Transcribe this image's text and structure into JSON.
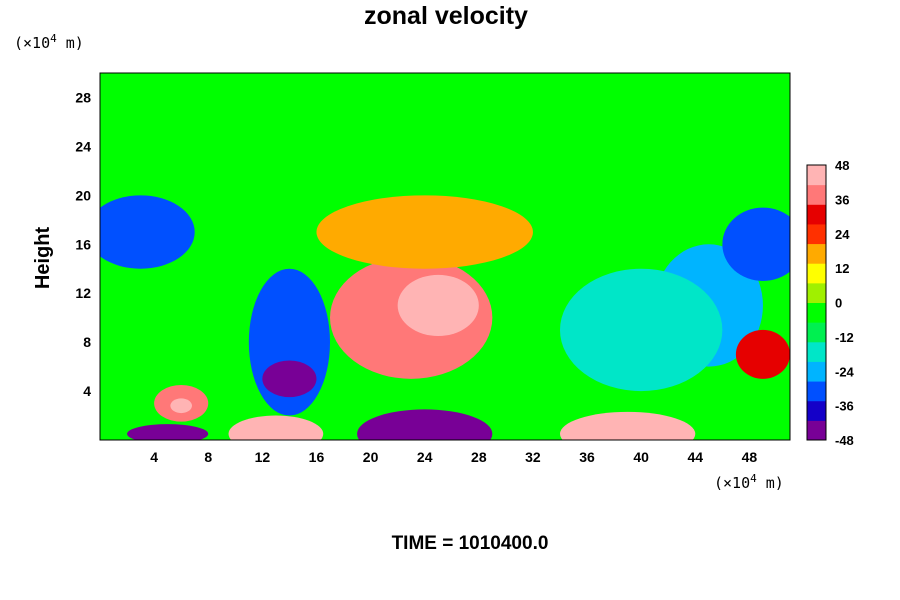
{
  "chart_data": {
    "type": "heatmap",
    "title": "zonal velocity",
    "ylabel": "Height",
    "x_unit_prefix": "(×10",
    "x_unit_exp": "4",
    "x_unit_suffix": " m)",
    "y_unit_prefix": "(×10",
    "y_unit_exp": "4",
    "y_unit_suffix": " m)",
    "xlim": [
      0,
      51
    ],
    "ylim": [
      0,
      30
    ],
    "x_ticks": [
      "4",
      "8",
      "12",
      "16",
      "20",
      "24",
      "28",
      "32",
      "36",
      "40",
      "44",
      "48"
    ],
    "y_ticks": [
      "4",
      "8",
      "12",
      "16",
      "20",
      "24",
      "28"
    ],
    "colorbar": {
      "range": [
        -48,
        48
      ],
      "ticks": [
        "48",
        "36",
        "24",
        "12",
        "0",
        "-12",
        "-24",
        "-36",
        "-48"
      ],
      "colors": [
        "#780096",
        "#1400c8",
        "#0050ff",
        "#00b4ff",
        "#00e6c8",
        "#00f050",
        "#00ff00",
        "#a0f000",
        "#ffff00",
        "#ffaa00",
        "#ff3000",
        "#e60000",
        "#ff7878",
        "#ffb4b4"
      ]
    },
    "background_value": -3,
    "features": [
      {
        "kind": "band",
        "y0": 20,
        "y1": 30,
        "value": -3
      },
      {
        "x": 23,
        "y": 10,
        "rx": 6,
        "ry": 5,
        "value": 40
      },
      {
        "x": 25,
        "y": 11,
        "rx": 3,
        "ry": 2.5,
        "value": 50
      },
      {
        "x": 14,
        "y": 8,
        "rx": 3,
        "ry": 6,
        "value": -32
      },
      {
        "x": 14,
        "y": 5,
        "rx": 2,
        "ry": 1.5,
        "value": -44
      },
      {
        "x": 3,
        "y": 17,
        "rx": 4,
        "ry": 3,
        "value": -30
      },
      {
        "x": 45,
        "y": 11,
        "rx": 4,
        "ry": 5,
        "value": -26
      },
      {
        "x": 40,
        "y": 9,
        "rx": 6,
        "ry": 5,
        "value": -18
      },
      {
        "x": 49,
        "y": 16,
        "rx": 3,
        "ry": 3,
        "value": -30
      },
      {
        "x": 24,
        "y": 17,
        "rx": 8,
        "ry": 3,
        "value": 16
      },
      {
        "x": 6,
        "y": 3,
        "rx": 2,
        "ry": 1.5,
        "value": 40
      },
      {
        "x": 6,
        "y": 2.8,
        "rx": 0.8,
        "ry": 0.6,
        "value": 55
      },
      {
        "x": 13,
        "y": 0.5,
        "rx": 3.5,
        "ry": 1.5,
        "value": 55
      },
      {
        "x": 24,
        "y": 0.5,
        "rx": 5,
        "ry": 2,
        "value": -60
      },
      {
        "x": 39,
        "y": 0.5,
        "rx": 5,
        "ry": 1.8,
        "value": 55
      },
      {
        "x": 5,
        "y": 0.5,
        "rx": 3,
        "ry": 0.8,
        "value": -55
      },
      {
        "x": 49,
        "y": 7,
        "rx": 2,
        "ry": 2,
        "value": 30
      }
    ]
  },
  "footer": {
    "time_text": "TIME = 1010400.0"
  }
}
